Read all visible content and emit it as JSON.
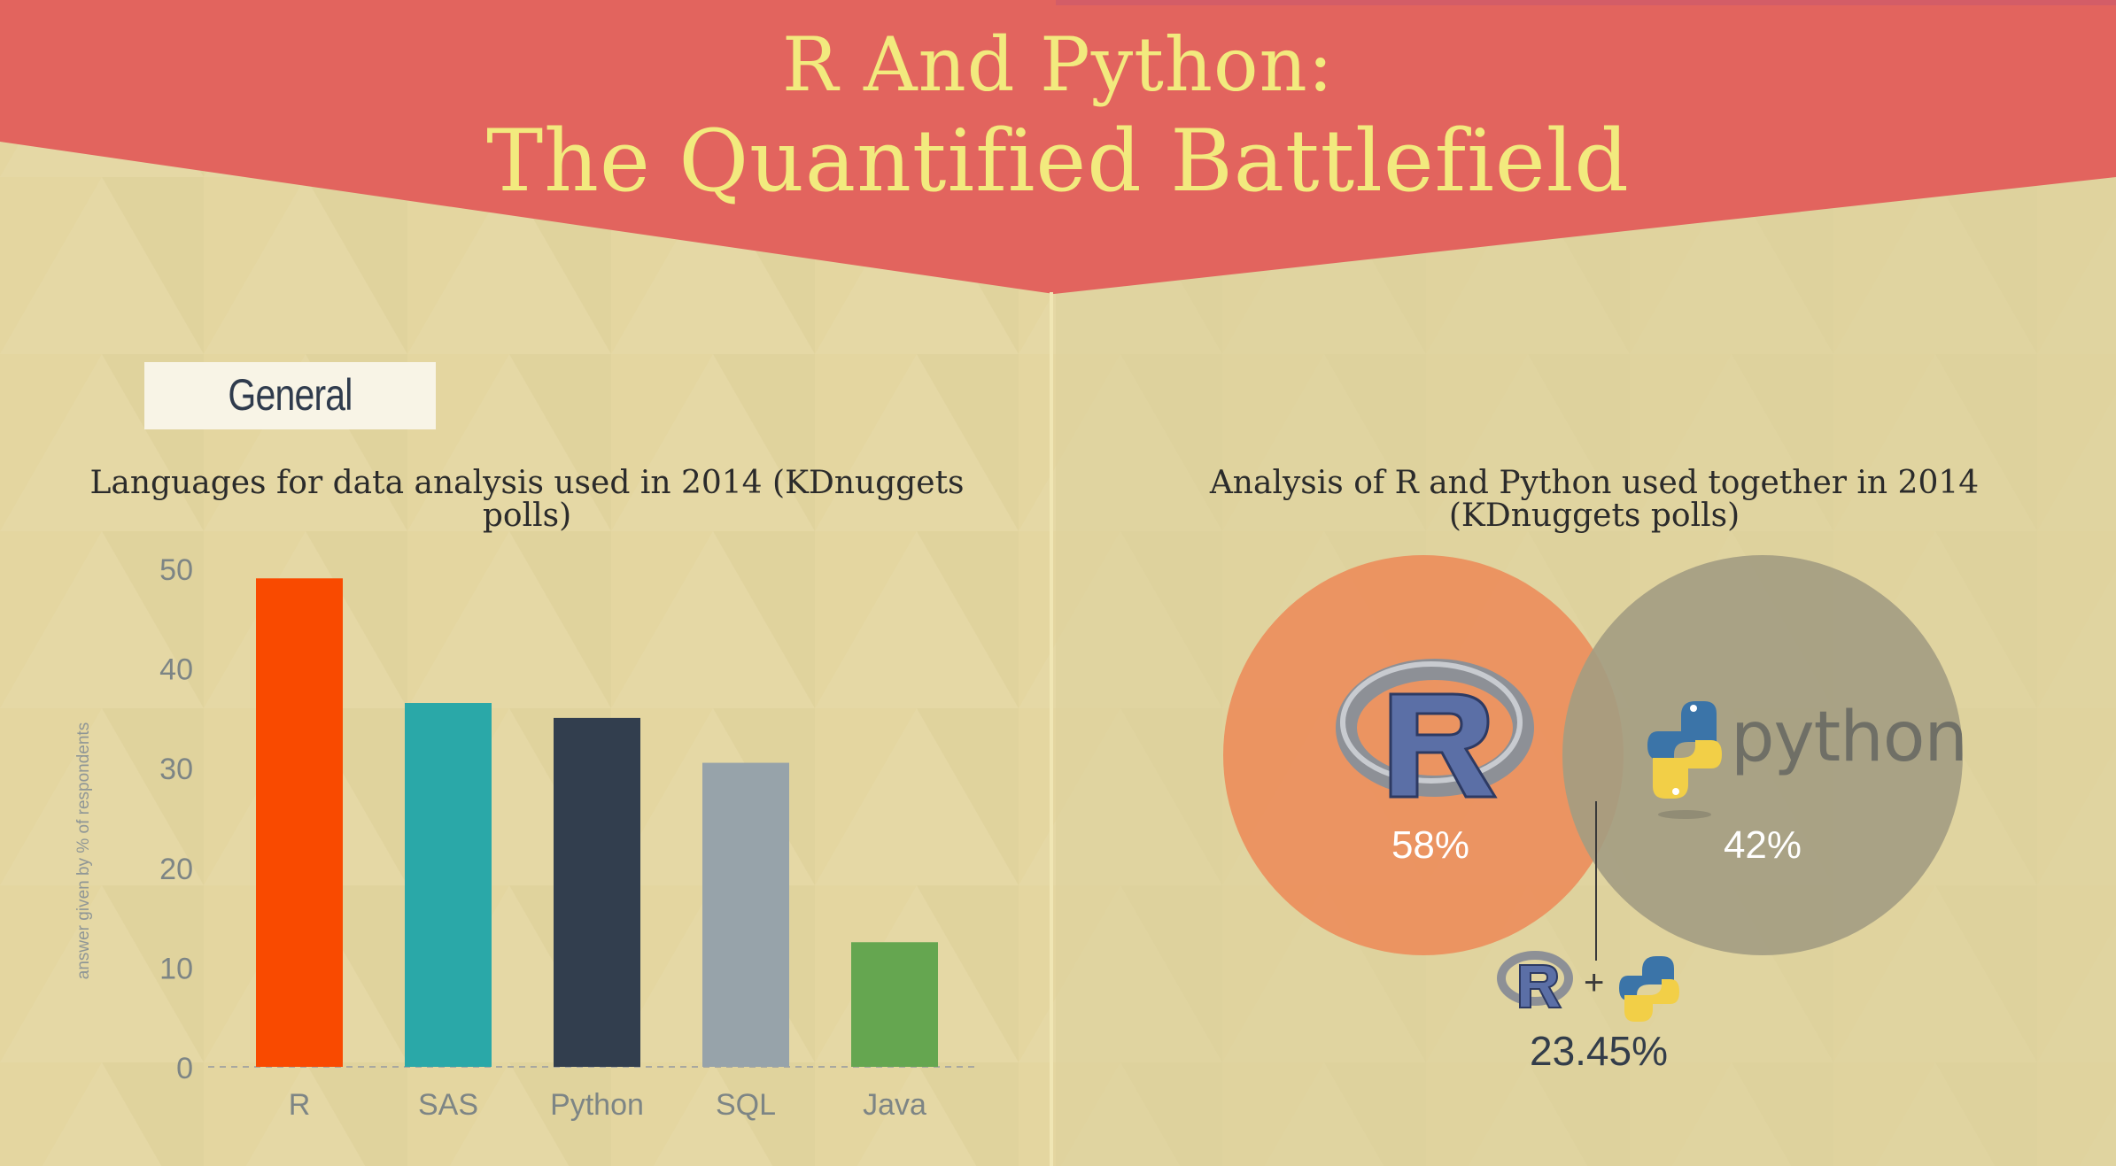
{
  "title": {
    "line1": "R And Python:",
    "line2": "The Quantified Battlefield"
  },
  "section": {
    "label": "General"
  },
  "colors": {
    "banner": "#e2645e",
    "background": "#e4d6a0",
    "r_circle": "#ec8e5c",
    "python_circle": "#a39c82"
  },
  "chart_data": [
    {
      "type": "bar",
      "title": "Languages for data analysis used in 2014 (KDnuggets polls)",
      "title_lines": [
        "Languages for data analysis used in 2014 (KDnuggets",
        "polls)"
      ],
      "ylabel": "answer given by % of respondents",
      "xlabel": "",
      "categories": [
        "R",
        "SAS",
        "Python",
        "SQL",
        "Java"
      ],
      "values": [
        49,
        36.5,
        35,
        30.5,
        12.5
      ],
      "colors": [
        "#f94a00",
        "#2aa8a8",
        "#323e4e",
        "#97a3aa",
        "#65a650"
      ],
      "ylim": [
        0,
        50
      ],
      "yticks": [
        "0",
        "10",
        "20",
        "30",
        "40",
        "50"
      ],
      "grid": false
    },
    {
      "type": "venn",
      "title": "Analysis of R and Python used together in 2014 (KDnuggets polls)",
      "title_lines": [
        "Analysis of R and Python used together in 2014",
        "(KDnuggets polls)"
      ],
      "sets": [
        {
          "name": "R",
          "value": 58,
          "label": "58%"
        },
        {
          "name": "python",
          "value": 42,
          "label": "42%"
        }
      ],
      "overlap": {
        "value": 23.45,
        "label": "23.45%",
        "plus": "+"
      }
    }
  ]
}
